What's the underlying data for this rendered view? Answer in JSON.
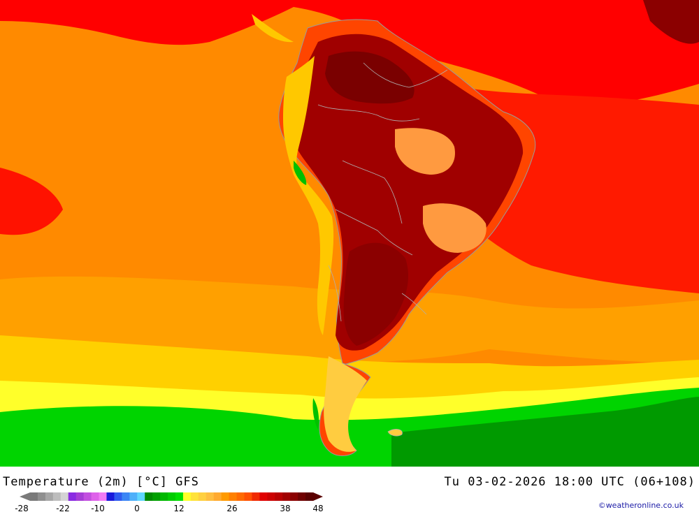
{
  "map": {
    "region": "South America",
    "variable": "Temperature (2m)",
    "land_colors": {
      "hottest": "#8b0000",
      "very_hot": "#c00000",
      "hot": "#ff0000",
      "warm": "#ff6a00",
      "mild": "#ff9a00",
      "cool": "#ffc800",
      "cold": "#ffff2a",
      "colder": "#00d400",
      "coldest": "#009000"
    }
  },
  "footer": {
    "title_left": "Temperature (2m) [°C] GFS",
    "title_right": "Tu 03-02-2026 18:00 UTC (06+108)",
    "credit": "©weatheronline.co.uk"
  },
  "legend": {
    "tick_labels": [
      "-28",
      "-22",
      "-10",
      "0",
      "12",
      "26",
      "38",
      "48"
    ],
    "tick_values": [
      -28,
      -22,
      -10,
      0,
      12,
      26,
      38,
      48
    ],
    "colors": [
      "#7a7a7a",
      "#8f8f8f",
      "#a6a6a6",
      "#bdbdbd",
      "#d4d4d4",
      "#8a2be2",
      "#a63dd6",
      "#c24fe0",
      "#de61ea",
      "#f07bf5",
      "#1a1adb",
      "#2f5bf0",
      "#3c86f5",
      "#4eb0fa",
      "#5fd6ff",
      "#008a00",
      "#00a000",
      "#00b800",
      "#00cc00",
      "#00e000",
      "#ffff2a",
      "#ffe23a",
      "#ffd040",
      "#ffbe40",
      "#ffaa30",
      "#ff9a00",
      "#ff8000",
      "#ff6a00",
      "#ff5000",
      "#f02a00",
      "#e00000",
      "#cc0000",
      "#b80000",
      "#a00000",
      "#8b0000",
      "#700000",
      "#5a0000"
    ]
  }
}
